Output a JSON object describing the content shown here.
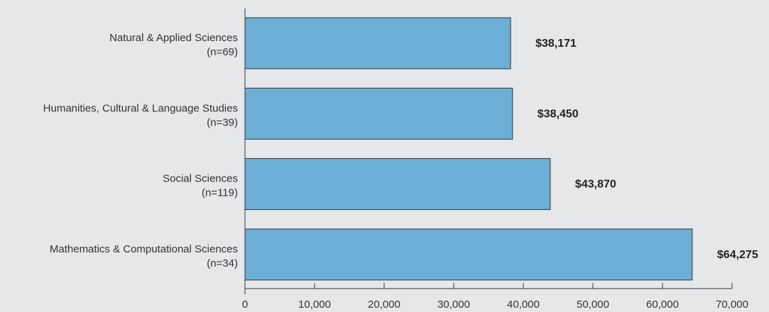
{
  "chart_data": {
    "type": "bar",
    "orientation": "horizontal",
    "title": "",
    "xlabel": "",
    "ylabel": "",
    "xlim": [
      0,
      70000
    ],
    "x_ticks": [
      "0",
      "10,000",
      "20,000",
      "30,000",
      "40,000",
      "50,000",
      "60,000",
      "70,000"
    ],
    "x_tick_values": [
      0,
      10000,
      20000,
      30000,
      40000,
      50000,
      60000,
      70000
    ],
    "grid": false,
    "categories": [
      {
        "name": "Natural & Applied Sciences",
        "n": "(n=69)"
      },
      {
        "name": "Humanities, Cultural & Language Studies",
        "n": "(n=39)"
      },
      {
        "name": "Social Sciences",
        "n": "(n=119)"
      },
      {
        "name": "Mathematics & Computational Sciences",
        "n": "(n=34)"
      }
    ],
    "values": [
      38171,
      38450,
      43870,
      64275
    ],
    "value_labels": [
      "$38,171",
      "$38,450",
      "$43,870",
      "$64,275"
    ],
    "colors": {
      "bar_fill": "#6baed6",
      "bar_stroke": "#333333",
      "axis": "#333333",
      "background": "#e6e7e8"
    }
  }
}
